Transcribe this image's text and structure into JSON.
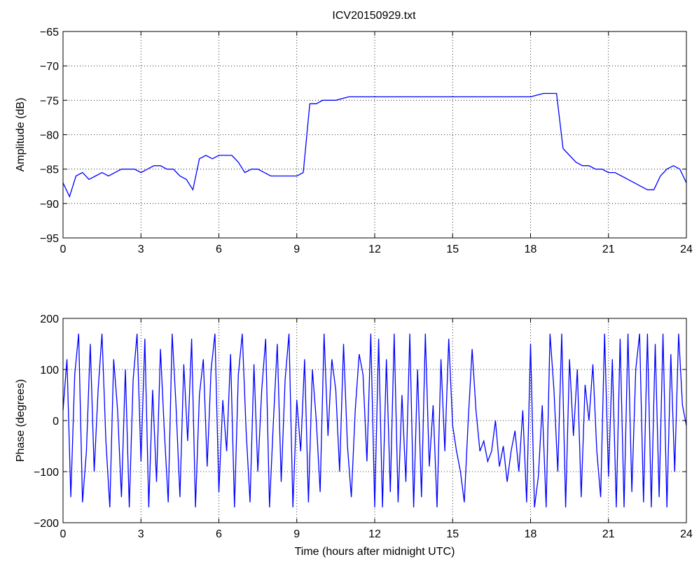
{
  "figure": {
    "title": "ICV20150929.txt"
  },
  "chart_data": [
    {
      "type": "line",
      "title": "ICV20150929.txt",
      "xlabel": "",
      "ylabel": "Amplitude (dB)",
      "xlim": [
        0,
        24
      ],
      "ylim": [
        -95,
        -65
      ],
      "xticks": [
        0,
        3,
        6,
        9,
        12,
        15,
        18,
        21,
        24
      ],
      "yticks": [
        -95,
        -90,
        -85,
        -80,
        -75,
        -70,
        -65
      ],
      "xtick_labels": [
        "0",
        "3",
        "6",
        "9",
        "12",
        "15",
        "18",
        "21",
        "24"
      ],
      "ytick_labels": [
        "−95",
        "−90",
        "−85",
        "−80",
        "−75",
        "−70",
        "−65"
      ],
      "grid": true,
      "line_color": "#0000ff",
      "series": [
        {
          "x": [
            0,
            0.25,
            0.5,
            0.75,
            1,
            1.25,
            1.5,
            1.75,
            2,
            2.25,
            2.5,
            2.75,
            3,
            3.25,
            3.5,
            3.75,
            4,
            4.25,
            4.5,
            4.75,
            5,
            5.25,
            5.5,
            5.75,
            6,
            6.25,
            6.5,
            6.75,
            7,
            7.25,
            7.5,
            7.75,
            8,
            8.25,
            8.5,
            8.75,
            9,
            9.25,
            9.5,
            9.75,
            10,
            10.5,
            11,
            11.5,
            12,
            12.5,
            13,
            13.5,
            14,
            14.5,
            15,
            15.5,
            16,
            16.5,
            17,
            17.5,
            18,
            18.5,
            19,
            19.25,
            19.5,
            19.75,
            20,
            20.25,
            20.5,
            20.75,
            21,
            21.25,
            21.5,
            21.75,
            22,
            22.25,
            22.5,
            22.75,
            23,
            23.25,
            23.5,
            23.75,
            24
          ],
          "values": [
            -87,
            -89,
            -86,
            -85.5,
            -86.5,
            -86,
            -85.5,
            -86,
            -85.5,
            -85,
            -85,
            -85,
            -85.5,
            -85,
            -84.5,
            -84.5,
            -85,
            -85,
            -86,
            -86.5,
            -88,
            -83.5,
            -83,
            -83.5,
            -83,
            -83,
            -83,
            -84,
            -85.5,
            -85,
            -85,
            -85.5,
            -86,
            -86,
            -86,
            -86,
            -86,
            -85.5,
            -75.5,
            -75.5,
            -75,
            -75,
            -74.5,
            -74.5,
            -74.5,
            -74.5,
            -74.5,
            -74.5,
            -74.5,
            -74.5,
            -74.5,
            -74.5,
            -74.5,
            -74.5,
            -74.5,
            -74.5,
            -74.5,
            -74,
            -74,
            -82,
            -83,
            -84,
            -84.5,
            -84.5,
            -85,
            -85,
            -85.5,
            -85.5,
            -86,
            -86.5,
            -87,
            -87.5,
            -88,
            -88,
            -86,
            -85,
            -84.5,
            -85,
            -87
          ]
        }
      ]
    },
    {
      "type": "line",
      "title": "",
      "xlabel": "Time (hours after midnight UTC)",
      "ylabel": "Phase (degrees)",
      "xlim": [
        0,
        24
      ],
      "ylim": [
        -200,
        200
      ],
      "xticks": [
        0,
        3,
        6,
        9,
        12,
        15,
        18,
        21,
        24
      ],
      "yticks": [
        -200,
        -100,
        0,
        100,
        200
      ],
      "xtick_labels": [
        "0",
        "3",
        "6",
        "9",
        "12",
        "15",
        "18",
        "21",
        "24"
      ],
      "ytick_labels": [
        "−200",
        "−100",
        "0",
        "100",
        "200"
      ],
      "grid": true,
      "line_color": "#0000ff",
      "series": [
        {
          "x": [
            0,
            0.15,
            0.3,
            0.45,
            0.6,
            0.75,
            0.9,
            1.05,
            1.2,
            1.35,
            1.5,
            1.65,
            1.8,
            1.95,
            2.1,
            2.25,
            2.4,
            2.55,
            2.7,
            2.85,
            3,
            3.15,
            3.3,
            3.45,
            3.6,
            3.75,
            3.9,
            4.05,
            4.2,
            4.35,
            4.5,
            4.65,
            4.8,
            4.95,
            5.1,
            5.25,
            5.4,
            5.55,
            5.7,
            5.85,
            6,
            6.15,
            6.3,
            6.45,
            6.6,
            6.75,
            6.9,
            7.05,
            7.2,
            7.35,
            7.5,
            7.65,
            7.8,
            7.95,
            8.1,
            8.25,
            8.4,
            8.55,
            8.7,
            8.85,
            9,
            9.15,
            9.3,
            9.45,
            9.6,
            9.75,
            9.9,
            10.05,
            10.2,
            10.35,
            10.5,
            10.65,
            10.8,
            10.95,
            11.1,
            11.25,
            11.4,
            11.55,
            11.7,
            11.85,
            12,
            12.15,
            12.3,
            12.45,
            12.6,
            12.75,
            12.9,
            13.05,
            13.2,
            13.35,
            13.5,
            13.65,
            13.8,
            13.95,
            14.1,
            14.25,
            14.4,
            14.55,
            14.7,
            14.85,
            15,
            15.15,
            15.3,
            15.45,
            15.6,
            15.75,
            15.9,
            16.05,
            16.2,
            16.35,
            16.5,
            16.65,
            16.8,
            16.95,
            17.1,
            17.25,
            17.4,
            17.55,
            17.7,
            17.85,
            18,
            18.15,
            18.3,
            18.45,
            18.6,
            18.75,
            18.9,
            19.05,
            19.2,
            19.35,
            19.5,
            19.65,
            19.8,
            19.95,
            20.1,
            20.25,
            20.4,
            20.55,
            20.7,
            20.85,
            21,
            21.15,
            21.3,
            21.45,
            21.6,
            21.75,
            21.9,
            22.05,
            22.2,
            22.35,
            22.5,
            22.65,
            22.8,
            22.95,
            23.1,
            23.25,
            23.4,
            23.55,
            23.7,
            23.85,
            24
          ],
          "values": [
            20,
            120,
            -150,
            90,
            170,
            -160,
            -60,
            150,
            -100,
            60,
            170,
            -40,
            -170,
            120,
            20,
            -150,
            100,
            -170,
            80,
            170,
            -80,
            160,
            -170,
            60,
            -120,
            140,
            -20,
            -160,
            170,
            30,
            -150,
            110,
            -40,
            160,
            -170,
            50,
            120,
            -90,
            100,
            170,
            -140,
            40,
            -60,
            130,
            -170,
            90,
            170,
            -20,
            -160,
            110,
            -100,
            60,
            160,
            -170,
            0,
            150,
            -120,
            80,
            170,
            -170,
            40,
            -60,
            120,
            -160,
            100,
            0,
            -140,
            170,
            -30,
            120,
            60,
            -100,
            150,
            -50,
            -150,
            20,
            130,
            90,
            -80,
            170,
            -170,
            160,
            -170,
            120,
            -140,
            170,
            -160,
            50,
            -120,
            170,
            -170,
            100,
            -150,
            170,
            -90,
            30,
            -170,
            120,
            -60,
            160,
            -10,
            -60,
            -100,
            -160,
            0,
            140,
            20,
            -60,
            -40,
            -80,
            -60,
            0,
            -90,
            -50,
            -120,
            -60,
            -20,
            -100,
            20,
            -160,
            150,
            -170,
            -110,
            30,
            -170,
            170,
            60,
            -100,
            170,
            -170,
            120,
            -30,
            100,
            -150,
            70,
            0,
            110,
            -60,
            -150,
            170,
            -110,
            120,
            -170,
            160,
            -170,
            170,
            -140,
            100,
            170,
            -160,
            170,
            -170,
            150,
            -150,
            170,
            -170,
            130,
            -100,
            170,
            30,
            -10
          ]
        }
      ]
    }
  ]
}
